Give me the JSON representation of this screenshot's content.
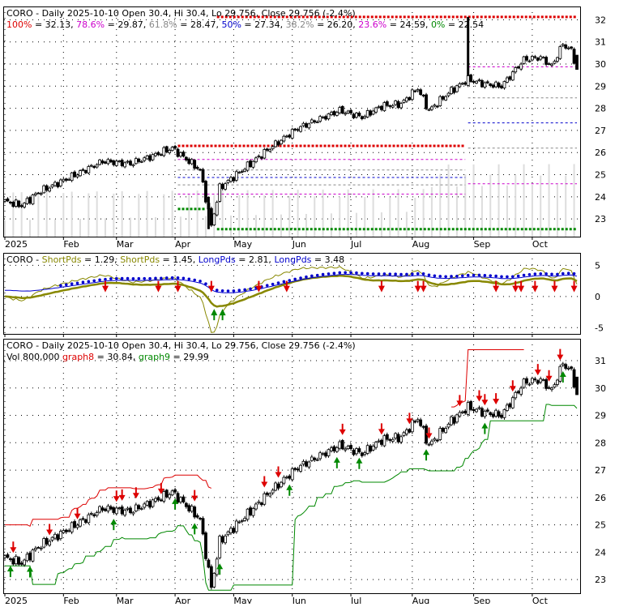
{
  "chart_data": [
    {
      "type": "candlestick",
      "panel": "price-fibonacci",
      "title": "CORO - Daily 2025-10-10 Open 30.4, Hi 30.4, Lo 29.756, Close 29.756 (-2.4%)",
      "ohlc_summary": {
        "date": "2025-10-10",
        "open": 30.4,
        "high": 30.4,
        "low": 29.756,
        "close": 29.756,
        "change_pct": -2.4
      },
      "fib_levels": [
        {
          "label": "100%",
          "value": "32.13",
          "color": "#dd0000"
        },
        {
          "label": "78.6%",
          "value": "29.87",
          "color": "#cc00cc"
        },
        {
          "label": "61.8%",
          "value": "28.47",
          "color": "#888888"
        },
        {
          "label": "50%",
          "value": "27.34",
          "color": "#0000cc"
        },
        {
          "label": "38.2%",
          "value": "26.20",
          "color": "#888888"
        },
        {
          "label": "23.6%",
          "value": "24.59",
          "color": "#cc00cc"
        },
        {
          "label": "0%",
          "value": "22.54",
          "color": "#008800"
        }
      ],
      "ylim": [
        22.2,
        32.6
      ],
      "yticks": [
        23,
        24,
        25,
        26,
        27,
        28,
        29,
        30,
        31,
        32
      ],
      "months": [
        "2025",
        "Feb",
        "Mar",
        "Apr",
        "May",
        "Jun",
        "Jul",
        "Aug",
        "Sep",
        "Oct"
      ]
    },
    {
      "type": "line",
      "panel": "guppy-mma",
      "title": "CORO",
      "legend": [
        {
          "name": "ShortPds",
          "value": "1.29",
          "color": "#888800"
        },
        {
          "name": "ShortPds",
          "value": "1.45",
          "color": "#888800"
        },
        {
          "name": "LongPds",
          "value": "2.81",
          "color": "#0000cc"
        },
        {
          "name": "LongPds",
          "value": "3.48",
          "color": "#0000cc"
        }
      ],
      "ylim": [
        -6,
        7
      ],
      "yticks": [
        -5,
        0,
        5
      ]
    },
    {
      "type": "candlestick",
      "panel": "price-trailing-stop",
      "title": "CORO - Daily 2025-10-10 Open 30.4, Hi 30.4, Lo 29.756, Close 29.756 (-2.4%)",
      "legend_line": "Vol 800,000",
      "legend": [
        {
          "name": "graph8",
          "value": "30.84",
          "color": "#dd0000"
        },
        {
          "name": "graph9",
          "value": "29.99",
          "color": "#008800"
        }
      ],
      "ylim": [
        22.5,
        31.8
      ],
      "yticks": [
        23,
        24,
        25,
        26,
        27,
        28,
        29,
        30,
        31
      ],
      "months": [
        "2025",
        "Feb",
        "Mar",
        "Apr",
        "May",
        "Jun",
        "Jul",
        "Aug",
        "Sep",
        "Oct"
      ]
    }
  ]
}
